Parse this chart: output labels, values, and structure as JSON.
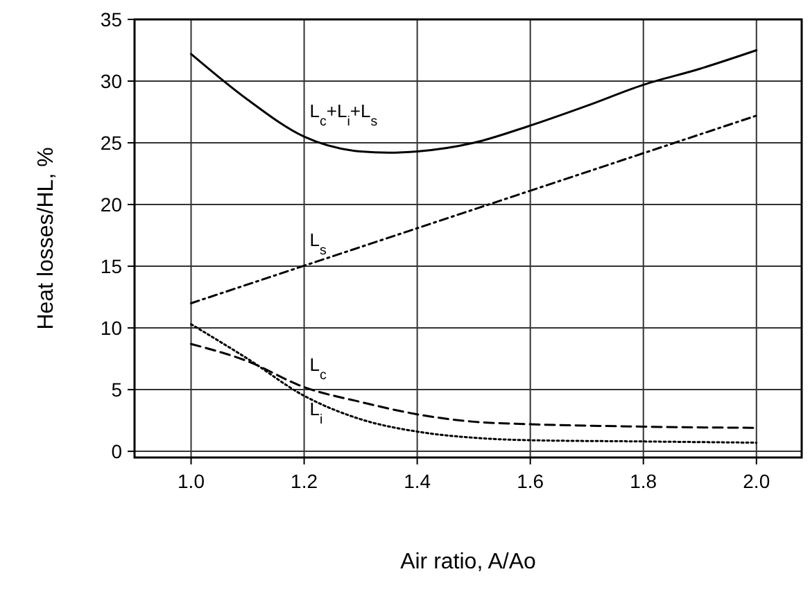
{
  "chart_data": {
    "type": "line",
    "xlabel": "Air ratio, A/Ao",
    "ylabel": "Heat losses/HL, %",
    "xlim": [
      0.9,
      2.08
    ],
    "ylim": [
      -0.5,
      35
    ],
    "xticks": [
      {
        "value": 1.0,
        "label": "1.0"
      },
      {
        "value": 1.2,
        "label": "1.2"
      },
      {
        "value": 1.4,
        "label": "1.4"
      },
      {
        "value": 1.6,
        "label": "1.6"
      },
      {
        "value": 1.8,
        "label": "1.8"
      },
      {
        "value": 2.0,
        "label": "2.0"
      }
    ],
    "yticks": [
      0,
      5,
      10,
      15,
      20,
      25,
      30,
      35
    ],
    "grid": true,
    "series": [
      {
        "name": "L$_{c}$+L$_{i}$+L$_{s}$",
        "color": "#000000",
        "line_style": "solid",
        "x": [
          1.0,
          1.1,
          1.2,
          1.3,
          1.35,
          1.4,
          1.5,
          1.6,
          1.7,
          1.8,
          1.9,
          2.0
        ],
        "values": [
          32.2,
          28.5,
          25.5,
          24.3,
          24.2,
          24.3,
          25,
          26.4,
          28,
          29.7,
          31,
          32.5
        ]
      },
      {
        "name": "L$_{s}$",
        "color": "#000000",
        "line_style": "dashdot",
        "x": [
          1.0,
          2.0
        ],
        "values": [
          12,
          27.2
        ]
      },
      {
        "name": "L$_{c}$",
        "color": "#000000",
        "line_style": "dashed",
        "x": [
          1.0,
          1.1,
          1.2,
          1.3,
          1.4,
          1.5,
          1.6,
          1.8,
          2.0
        ],
        "values": [
          8.7,
          7.3,
          5.2,
          4.0,
          3.0,
          2.4,
          2.2,
          2.0,
          1.9
        ]
      },
      {
        "name": "L$_{i}$",
        "color": "#000000",
        "line_style": "dotted",
        "x": [
          1.0,
          1.1,
          1.2,
          1.3,
          1.4,
          1.5,
          1.6,
          1.8,
          2.0
        ],
        "values": [
          10.3,
          7.5,
          4.5,
          2.6,
          1.6,
          1.1,
          0.9,
          0.8,
          0.7
        ]
      }
    ]
  }
}
